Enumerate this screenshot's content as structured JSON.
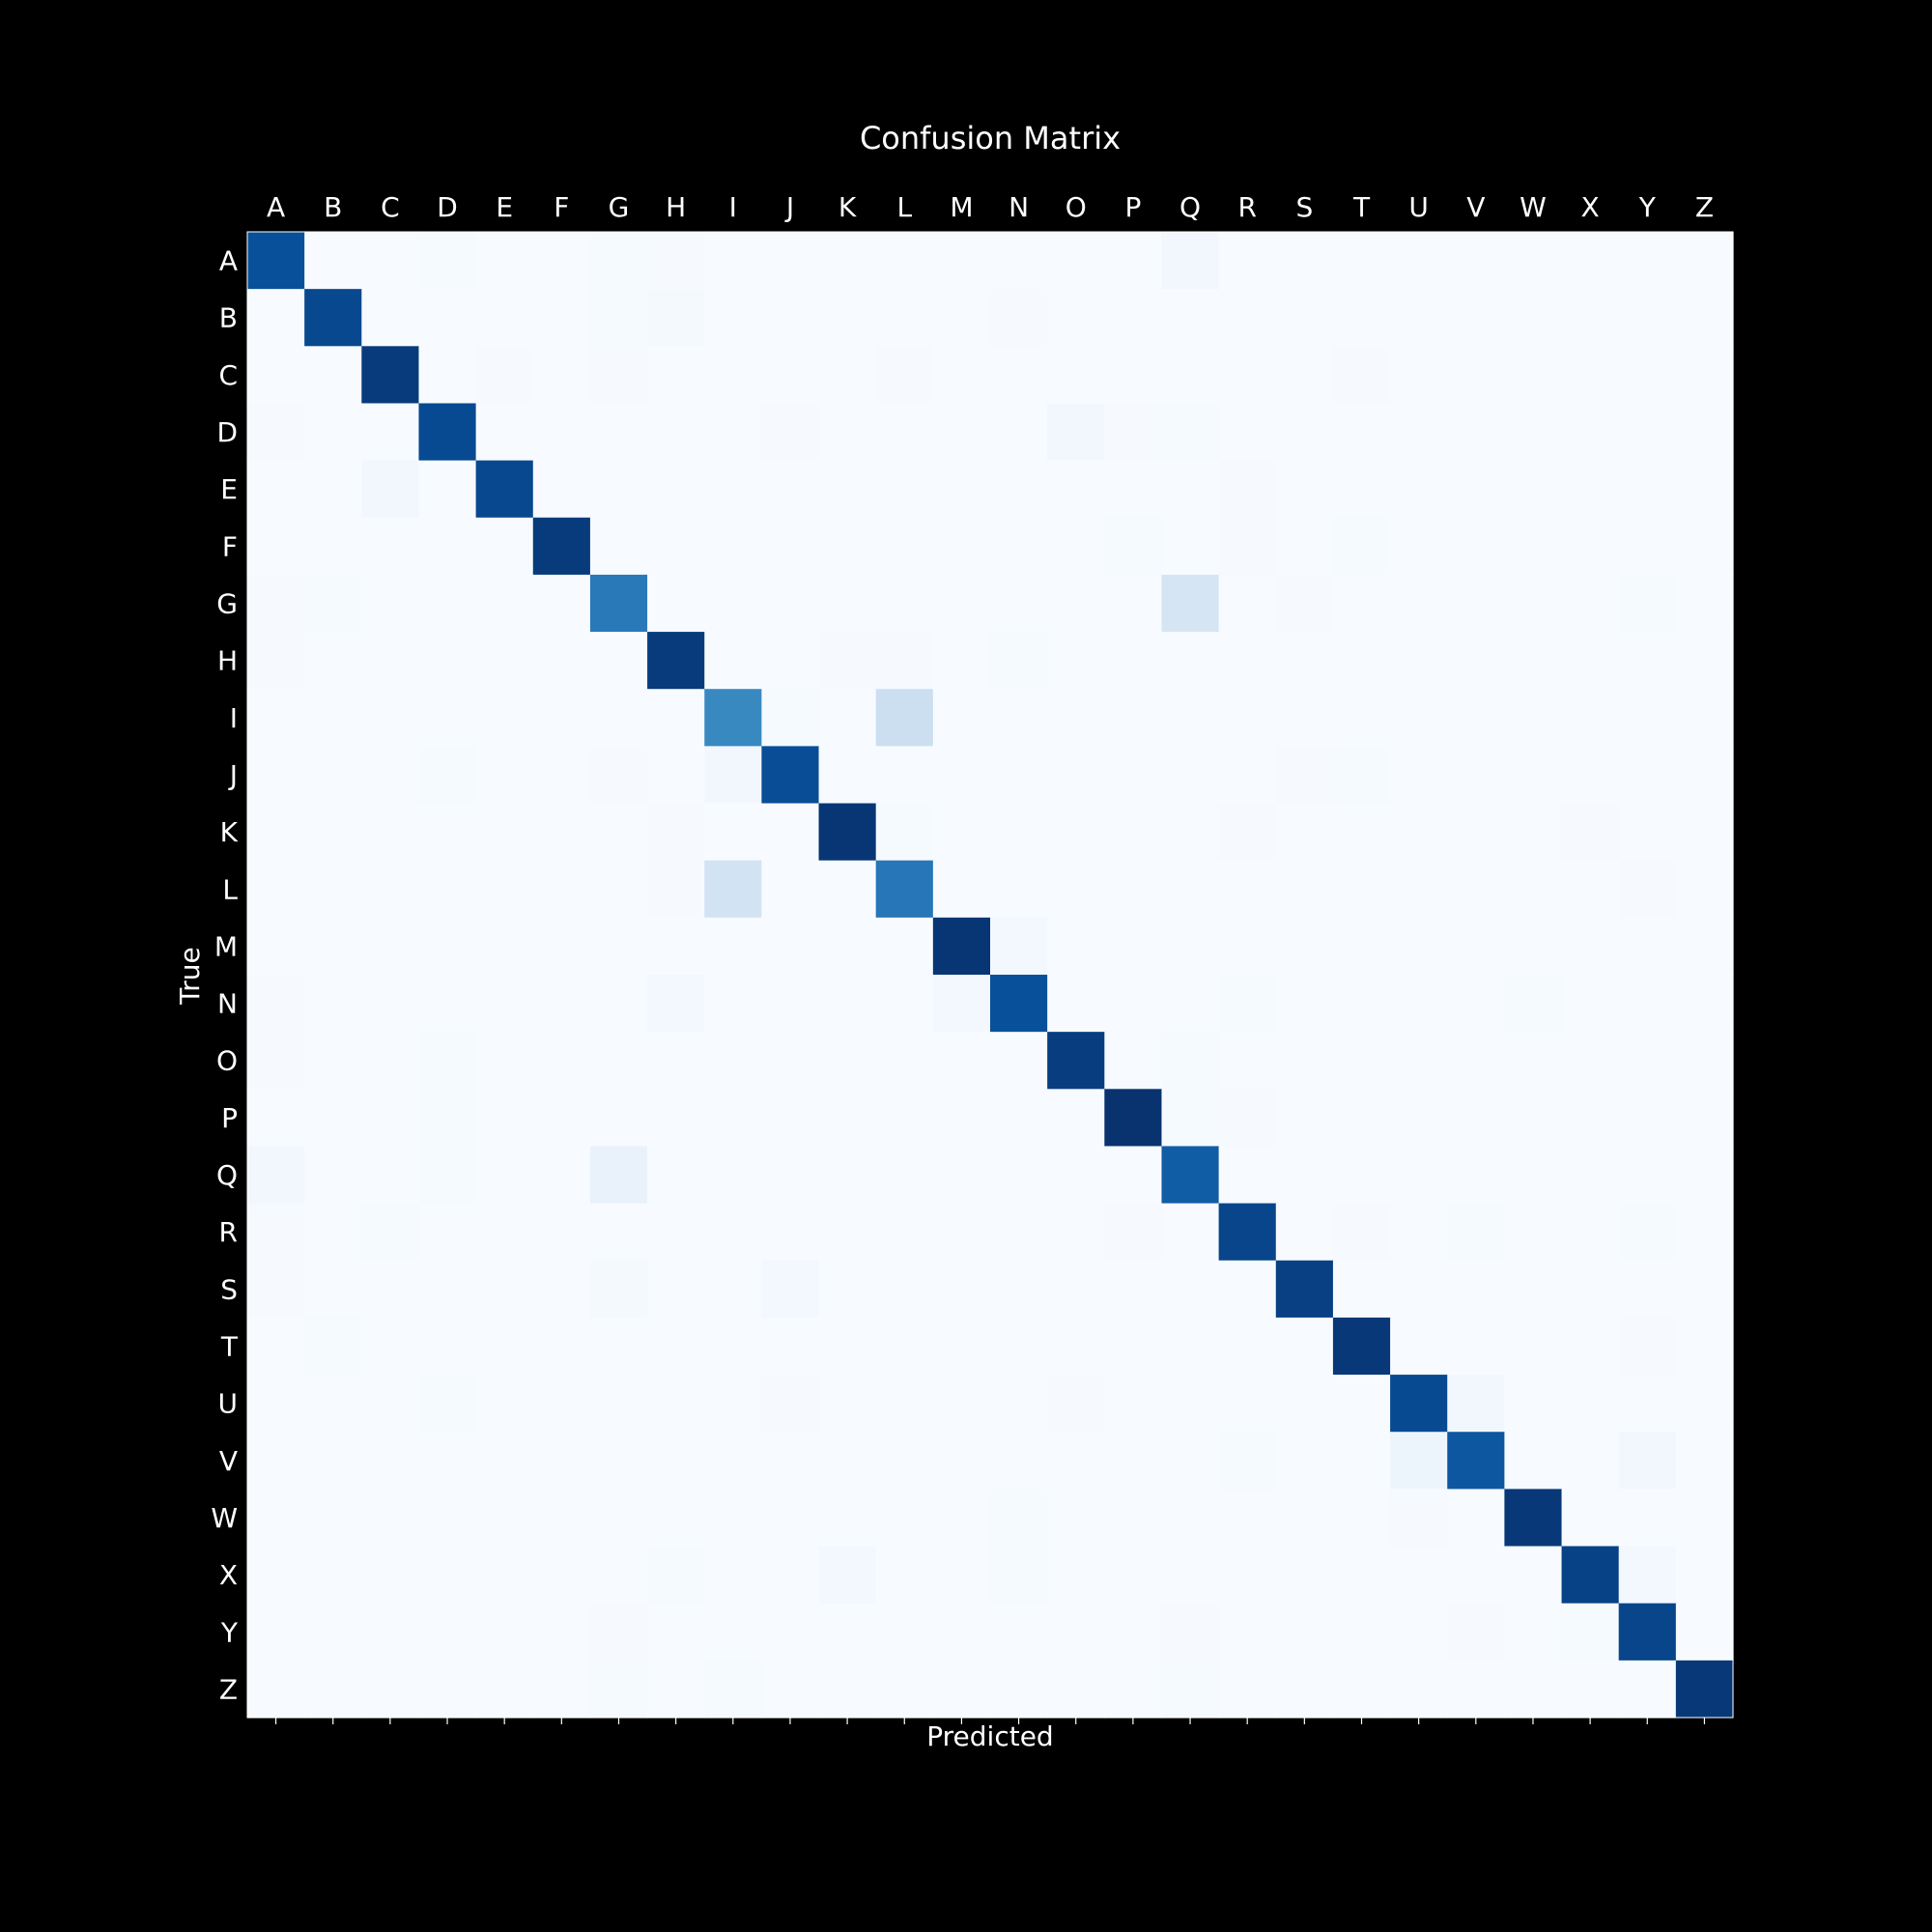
{
  "chart_data": {
    "type": "heatmap",
    "title": "Confusion Matrix",
    "xlabel": "Predicted",
    "ylabel": "True",
    "x_tick_position": "top",
    "colormap": "Blues",
    "x_categories": [
      "A",
      "B",
      "C",
      "D",
      "E",
      "F",
      "G",
      "H",
      "I",
      "J",
      "K",
      "L",
      "M",
      "N",
      "O",
      "P",
      "Q",
      "R",
      "S",
      "T",
      "U",
      "V",
      "W",
      "X",
      "Y",
      "Z"
    ],
    "y_categories": [
      "A",
      "B",
      "C",
      "D",
      "E",
      "F",
      "G",
      "H",
      "I",
      "J",
      "K",
      "L",
      "M",
      "N",
      "O",
      "P",
      "Q",
      "R",
      "S",
      "T",
      "U",
      "V",
      "W",
      "X",
      "Y",
      "Z"
    ],
    "intensity_range": [
      0,
      1
    ],
    "values": [
      [
        0.88,
        0,
        0,
        0.01,
        0,
        0,
        0.01,
        0.005,
        0,
        0,
        0,
        0,
        0,
        0,
        0,
        0,
        0.03,
        0,
        0,
        0,
        0,
        0,
        0,
        0,
        0,
        0
      ],
      [
        0,
        0.91,
        0,
        0,
        0,
        0,
        0.01,
        0.015,
        0,
        0,
        0,
        0,
        0,
        0.005,
        0,
        0,
        0,
        0,
        0,
        0,
        0,
        0,
        0,
        0,
        0,
        0
      ],
      [
        0,
        0,
        0.96,
        0,
        0.005,
        0,
        0.005,
        0,
        0,
        0,
        0,
        0.005,
        0,
        0,
        0,
        0,
        0,
        0,
        0,
        0.005,
        0,
        0,
        0,
        0,
        0,
        0
      ],
      [
        0.005,
        0,
        0,
        0.9,
        0,
        0,
        0,
        0,
        0,
        0.005,
        0,
        0,
        0,
        0,
        0.03,
        0.005,
        0.01,
        0,
        0,
        0,
        0,
        0,
        0,
        0,
        0,
        0
      ],
      [
        0,
        0,
        0.03,
        0,
        0.91,
        0,
        0,
        0,
        0,
        0,
        0,
        0,
        0,
        0,
        0,
        0,
        0,
        0.005,
        0,
        0,
        0,
        0,
        0,
        0,
        0,
        0
      ],
      [
        0,
        0,
        0,
        0,
        0,
        0.96,
        0,
        0,
        0,
        0,
        0,
        0,
        0,
        0,
        0,
        0.01,
        0,
        0.005,
        0,
        0.01,
        0,
        0,
        0,
        0,
        0,
        0
      ],
      [
        0.005,
        0.01,
        0,
        0,
        0,
        0,
        0.72,
        0,
        0,
        0,
        0,
        0,
        0,
        0,
        0,
        0,
        0.17,
        0,
        0.005,
        0,
        0,
        0,
        0,
        0,
        0.01,
        0
      ],
      [
        0.005,
        0,
        0,
        0,
        0,
        0,
        0,
        0.96,
        0,
        0,
        0.005,
        0.005,
        0,
        0.01,
        0,
        0,
        0,
        0,
        0,
        0,
        0,
        0,
        0,
        0,
        0,
        0
      ],
      [
        0,
        0,
        0,
        0,
        0,
        0,
        0,
        0,
        0.66,
        0.01,
        0,
        0.22,
        0,
        0,
        0,
        0,
        0,
        0,
        0,
        0,
        0,
        0,
        0,
        0,
        0,
        0
      ],
      [
        0,
        0,
        0,
        0.01,
        0,
        0,
        0.005,
        0,
        0.03,
        0.89,
        0,
        0,
        0,
        0,
        0,
        0,
        0,
        0,
        0.005,
        0.01,
        0,
        0,
        0,
        0,
        0,
        0
      ],
      [
        0,
        0,
        0,
        0,
        0,
        0,
        0,
        0.005,
        0,
        0,
        0.98,
        0.01,
        0,
        0,
        0,
        0,
        0,
        0.005,
        0,
        0,
        0,
        0,
        0,
        0.005,
        0,
        0
      ],
      [
        0,
        0,
        0,
        0,
        0,
        0,
        0,
        0.005,
        0.19,
        0,
        0,
        0.73,
        0,
        0,
        0,
        0,
        0,
        0,
        0,
        0,
        0,
        0,
        0,
        0,
        0.005,
        0
      ],
      [
        0,
        0,
        0,
        0,
        0,
        0,
        0,
        0,
        0,
        0,
        0,
        0,
        0.98,
        0.02,
        0,
        0,
        0,
        0,
        0,
        0,
        0,
        0,
        0,
        0,
        0,
        0
      ],
      [
        0.005,
        0,
        0,
        0,
        0,
        0,
        0,
        0.02,
        0,
        0,
        0,
        0,
        0.02,
        0.88,
        0,
        0,
        0,
        0.01,
        0,
        0,
        0,
        0,
        0.01,
        0,
        0,
        0
      ],
      [
        0.005,
        0,
        0,
        0.01,
        0,
        0,
        0,
        0,
        0,
        0,
        0,
        0,
        0,
        0,
        0.95,
        0,
        0.01,
        0,
        0,
        0,
        0,
        0,
        0,
        0,
        0,
        0
      ],
      [
        0,
        0,
        0,
        0.01,
        0,
        0,
        0,
        0,
        0,
        0,
        0,
        0,
        0,
        0,
        0,
        0.99,
        0.01,
        0.005,
        0,
        0,
        0,
        0,
        0,
        0,
        0,
        0
      ],
      [
        0.03,
        0,
        0,
        0.01,
        0,
        0,
        0.07,
        0,
        0,
        0,
        0,
        0,
        0,
        0,
        0,
        0,
        0.83,
        0,
        0,
        0,
        0,
        0,
        0,
        0,
        0,
        0
      ],
      [
        0.005,
        0,
        0.01,
        0,
        0,
        0,
        0,
        0,
        0,
        0,
        0,
        0,
        0,
        0,
        0,
        0.005,
        0,
        0.92,
        0,
        0.005,
        0,
        0.01,
        0,
        0,
        0.01,
        0
      ],
      [
        0.005,
        0,
        0,
        0,
        0,
        0,
        0.015,
        0,
        0,
        0.02,
        0,
        0,
        0,
        0,
        0,
        0,
        0,
        0,
        0.94,
        0,
        0,
        0,
        0,
        0,
        0,
        0
      ],
      [
        0,
        0.01,
        0,
        0,
        0,
        0,
        0,
        0,
        0,
        0,
        0,
        0,
        0,
        0,
        0,
        0,
        0,
        0,
        0,
        0.97,
        0,
        0,
        0,
        0,
        0.005,
        0
      ],
      [
        0,
        0,
        0,
        0.01,
        0,
        0,
        0,
        0,
        0,
        0.005,
        0,
        0,
        0,
        0,
        0.005,
        0,
        0,
        0,
        0,
        0,
        0.9,
        0.03,
        0,
        0,
        0,
        0
      ],
      [
        0,
        0,
        0,
        0,
        0,
        0,
        0,
        0,
        0,
        0,
        0,
        0,
        0,
        0,
        0,
        0,
        0,
        0.01,
        0,
        0,
        0.05,
        0.85,
        0,
        0,
        0.03,
        0
      ],
      [
        0,
        0,
        0,
        0,
        0,
        0,
        0,
        0,
        0,
        0,
        0,
        0,
        0,
        0.01,
        0,
        0,
        0,
        0,
        0,
        0,
        0.005,
        0,
        0.97,
        0,
        0,
        0
      ],
      [
        0,
        0,
        0,
        0,
        0,
        0,
        0,
        0.01,
        0,
        0,
        0.02,
        0,
        0,
        0.01,
        0,
        0,
        0,
        0,
        0,
        0,
        0,
        0,
        0,
        0.93,
        0.02,
        0
      ],
      [
        0,
        0,
        0,
        0,
        0,
        0,
        0.005,
        0,
        0,
        0,
        0,
        0,
        0,
        0,
        0,
        0,
        0.005,
        0,
        0,
        0,
        0,
        0.005,
        0,
        0.01,
        0.92,
        0
      ],
      [
        0,
        0,
        0,
        0,
        0,
        0,
        0.01,
        0,
        0.01,
        0,
        0,
        0,
        0,
        0,
        0,
        0,
        0.01,
        0,
        0,
        0,
        0,
        0,
        0,
        0,
        0,
        0.97
      ]
    ]
  }
}
